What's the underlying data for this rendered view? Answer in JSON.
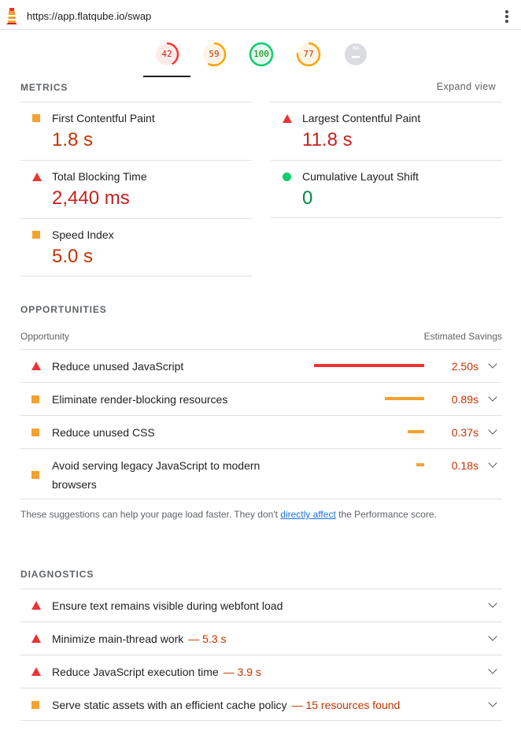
{
  "browser": {
    "url": "https://app.flatqube.io/swap",
    "logo_icon": "lighthouse-icon",
    "menu_icon": "kebab-menu-icon"
  },
  "scores": [
    {
      "value": "42",
      "fraction": 0.42,
      "color": "#ff3333",
      "text_color": "#c5221f",
      "bg": "#fdecea"
    },
    {
      "value": "59",
      "fraction": 0.59,
      "color": "#ffa400",
      "text_color": "#c33300",
      "bg": "#fff5e6"
    },
    {
      "value": "100",
      "fraction": 1.0,
      "color": "#0cce6b",
      "text_color": "#008000",
      "bg": "#e6faef"
    },
    {
      "value": "77",
      "fraction": 0.77,
      "color": "#ffa400",
      "text_color": "#c33300",
      "bg": "#fff5e6"
    },
    {
      "value": "PWA",
      "fraction": 0,
      "color": "#cccccc",
      "text_color": "#ffffff",
      "bg": "#dadce0"
    }
  ],
  "metrics_section": {
    "title": "METRICS",
    "expand_label": "Expand view"
  },
  "metrics": [
    {
      "title": "First Contentful Paint",
      "value": "1.8 s",
      "status": "average"
    },
    {
      "title": "Largest Contentful Paint",
      "value": "11.8 s",
      "status": "fail"
    },
    {
      "title": "Total Blocking Time",
      "value": "2,440 ms",
      "status": "fail"
    },
    {
      "title": "Cumulative Layout Shift",
      "value": "0",
      "status": "pass"
    },
    {
      "title": "Speed Index",
      "value": "5.0 s",
      "status": "average"
    }
  ],
  "opportunities_section": {
    "title": "OPPORTUNITIES",
    "col_opportunity": "Opportunity",
    "col_savings": "Estimated Savings"
  },
  "opportunities": [
    {
      "label": "Reduce unused JavaScript",
      "savings": "2.50s",
      "status": "fail",
      "fraction": 1.0
    },
    {
      "label": "Eliminate render-blocking resources",
      "savings": "0.89s",
      "status": "average",
      "fraction": 0.36
    },
    {
      "label": "Reduce unused CSS",
      "savings": "0.37s",
      "status": "average",
      "fraction": 0.15
    },
    {
      "label_line1": "Avoid serving legacy JavaScript to modern",
      "label_line2": "browsers",
      "savings": "0.18s",
      "status": "average",
      "fraction": 0.07
    }
  ],
  "note": {
    "before": "These suggestions can help your page load faster. They don't ",
    "link": "directly affect",
    "after": " the Performance score."
  },
  "diagnostics_section": {
    "title": "DIAGNOSTICS"
  },
  "diagnostics": [
    {
      "label": "Ensure text remains visible during webfont load",
      "extra": "",
      "status": "fail"
    },
    {
      "label": "Minimize main-thread work",
      "extra": "— 5.3 s",
      "status": "fail"
    },
    {
      "label": "Reduce JavaScript execution time",
      "extra": "— 3.9 s",
      "status": "fail"
    },
    {
      "label": "Serve static assets with an efficient cache policy",
      "extra": "— 15 resources found",
      "status": "average"
    }
  ],
  "colors": {
    "fail": "#eb3333",
    "average": "#f4a230",
    "pass": "#0cce6b",
    "link": "#1a73e8"
  }
}
